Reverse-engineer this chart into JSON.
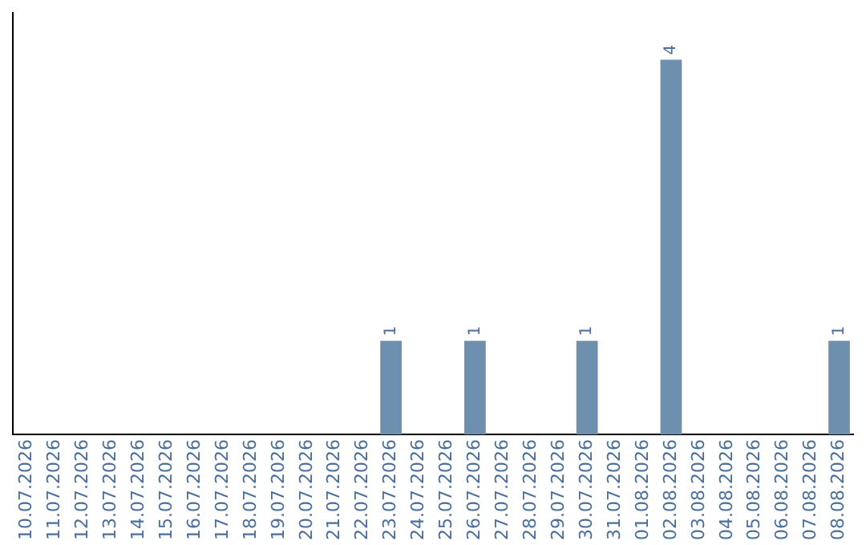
{
  "chart_data": {
    "type": "bar",
    "categories": [
      "10.07.2026",
      "11.07.2026",
      "12.07.2026",
      "13.07.2026",
      "14.07.2026",
      "15.07.2026",
      "16.07.2026",
      "17.07.2026",
      "18.07.2026",
      "19.07.2026",
      "20.07.2026",
      "21.07.2026",
      "22.07.2026",
      "23.07.2026",
      "24.07.2026",
      "25.07.2026",
      "26.07.2026",
      "27.07.2026",
      "28.07.2026",
      "29.07.2026",
      "30.07.2026",
      "31.07.2026",
      "01.08.2026",
      "02.08.2026",
      "03.08.2026",
      "04.08.2026",
      "05.08.2026",
      "06.08.2026",
      "07.08.2026",
      "08.08.2026"
    ],
    "values": [
      null,
      null,
      null,
      null,
      null,
      null,
      null,
      null,
      null,
      null,
      null,
      null,
      null,
      1,
      null,
      null,
      1,
      null,
      null,
      null,
      1,
      null,
      null,
      4,
      null,
      null,
      null,
      null,
      null,
      1
    ],
    "data_labels": true,
    "color": "#6f8fae",
    "grid": false,
    "legend": false,
    "tick_labels": "x"
  }
}
